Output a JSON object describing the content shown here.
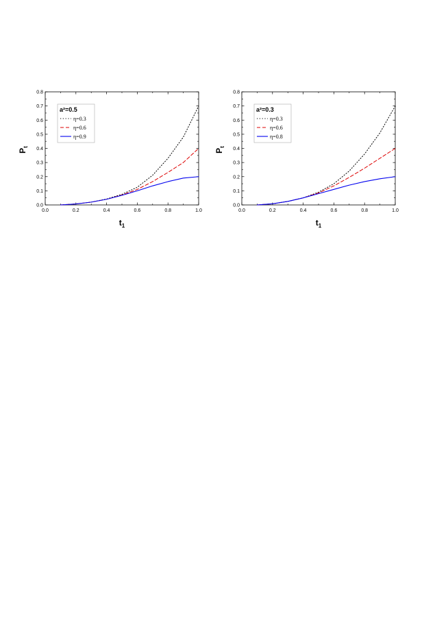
{
  "chart_data": [
    {
      "type": "line",
      "title": "",
      "xlabel": "t",
      "xlabel_sub": "1",
      "ylabel": "P",
      "ylabel_sub": "t",
      "xlim": [
        0.0,
        1.0
      ],
      "ylim": [
        0.0,
        0.8
      ],
      "xticks": [
        "0.0",
        "0.2",
        "0.4",
        "0.6",
        "0.8",
        "1.0"
      ],
      "yticks": [
        "0.0",
        "0.1",
        "0.2",
        "0.3",
        "0.4",
        "0.5",
        "0.6",
        "0.7",
        "0.8"
      ],
      "grid": false,
      "legend_position": "top-left",
      "legend_title": "a²=0.5",
      "series": [
        {
          "name": "η=0.3",
          "style": "dotted",
          "color": "#000000",
          "x": [
            0.1,
            0.2,
            0.3,
            0.4,
            0.5,
            0.6,
            0.7,
            0.8,
            0.9,
            1.0
          ],
          "y": [
            0.0,
            0.007,
            0.02,
            0.042,
            0.075,
            0.125,
            0.21,
            0.33,
            0.48,
            0.7
          ]
        },
        {
          "name": "η=0.6",
          "style": "dashed",
          "color": "#dd0000",
          "x": [
            0.1,
            0.2,
            0.3,
            0.4,
            0.5,
            0.6,
            0.7,
            0.8,
            0.9,
            1.0
          ],
          "y": [
            0.0,
            0.007,
            0.02,
            0.04,
            0.07,
            0.11,
            0.165,
            0.23,
            0.3,
            0.4
          ]
        },
        {
          "name": "η=0.9",
          "style": "solid",
          "color": "#0000ee",
          "x": [
            0.1,
            0.2,
            0.3,
            0.4,
            0.5,
            0.6,
            0.7,
            0.8,
            0.9,
            1.0
          ],
          "y": [
            0.0,
            0.007,
            0.02,
            0.04,
            0.068,
            0.1,
            0.135,
            0.165,
            0.19,
            0.2
          ]
        }
      ]
    },
    {
      "type": "line",
      "title": "",
      "xlabel": "t",
      "xlabel_sub": "1",
      "ylabel": "P",
      "ylabel_sub": "t",
      "xlim": [
        0.0,
        1.0
      ],
      "ylim": [
        0.0,
        0.8
      ],
      "xticks": [
        "0.0",
        "0.2",
        "0.4",
        "0.6",
        "0.8",
        "1.0"
      ],
      "yticks": [
        "0.0",
        "0.1",
        "0.2",
        "0.3",
        "0.4",
        "0.5",
        "0.6",
        "0.7",
        "0.8"
      ],
      "grid": false,
      "legend_position": "top-left",
      "legend_title": "a²=0.3",
      "series": [
        {
          "name": "η=0.3",
          "style": "dotted",
          "color": "#000000",
          "x": [
            0.1,
            0.2,
            0.3,
            0.4,
            0.5,
            0.6,
            0.7,
            0.8,
            0.9,
            1.0
          ],
          "y": [
            0.0,
            0.008,
            0.025,
            0.05,
            0.09,
            0.15,
            0.24,
            0.36,
            0.51,
            0.7
          ]
        },
        {
          "name": "η=0.6",
          "style": "dashed",
          "color": "#dd0000",
          "x": [
            0.1,
            0.2,
            0.3,
            0.4,
            0.5,
            0.6,
            0.7,
            0.8,
            0.9,
            1.0
          ],
          "y": [
            0.0,
            0.008,
            0.025,
            0.05,
            0.085,
            0.135,
            0.195,
            0.26,
            0.33,
            0.4
          ]
        },
        {
          "name": "η=0.8",
          "style": "solid",
          "color": "#0000ee",
          "x": [
            0.1,
            0.2,
            0.3,
            0.4,
            0.5,
            0.6,
            0.7,
            0.8,
            0.9,
            1.0
          ],
          "y": [
            0.0,
            0.008,
            0.025,
            0.05,
            0.08,
            0.11,
            0.14,
            0.165,
            0.185,
            0.2
          ]
        }
      ]
    }
  ]
}
